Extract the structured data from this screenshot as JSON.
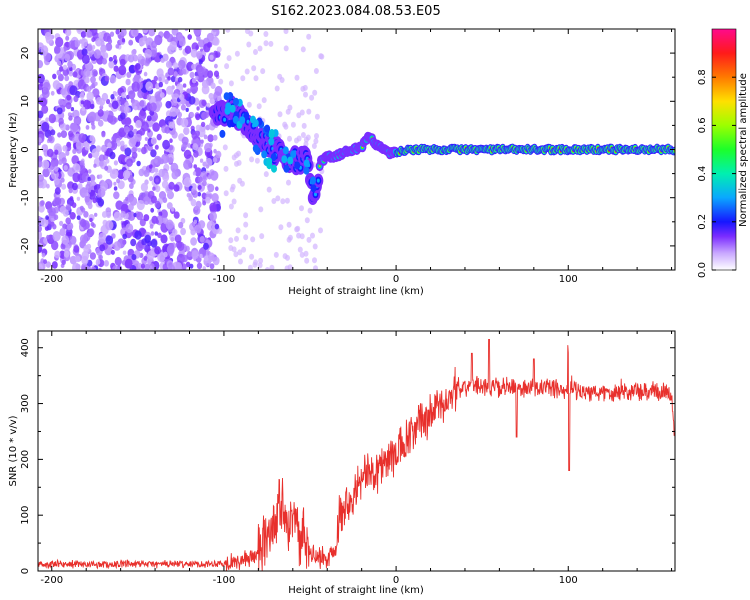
{
  "title": "S162.2023.084.08.53.E05",
  "chart_data": [
    {
      "type": "heatmap",
      "xlabel": "Height of straight line (km)",
      "ylabel": "Frequency (Hz)",
      "xlim": [
        -208,
        162
      ],
      "ylim": [
        -25,
        25
      ],
      "x_ticks": [
        -200,
        -100,
        0,
        100
      ],
      "y_ticks": [
        -20,
        -10,
        0,
        10,
        20
      ],
      "colorbar": {
        "label": "Normalized spectral amplitude",
        "range": [
          0.0,
          1.0
        ],
        "ticks": [
          0.0,
          0.2,
          0.4,
          0.6,
          0.8
        ],
        "tick_labels": [
          "0.0",
          "0.2",
          "0.4",
          "0.6",
          "0.8"
        ]
      },
      "ridge": {
        "x": [
          -105,
          -95,
          -88,
          -82,
          -75,
          -68,
          -60,
          -52,
          -48,
          -44,
          -40,
          -35,
          -30,
          -25,
          -20,
          -16,
          -12,
          -8,
          -4,
          0,
          10,
          40,
          80,
          120,
          162
        ],
        "freq": [
          6.5,
          8.0,
          6.0,
          3.0,
          1.0,
          -1.0,
          -2.0,
          -2.5,
          -10.5,
          -2.5,
          -1.5,
          -1.5,
          -0.5,
          0.0,
          0.5,
          3.0,
          1.0,
          0.5,
          -1.0,
          -0.5,
          0.0,
          0.0,
          0.0,
          0.0,
          0.0
        ]
      }
    },
    {
      "type": "line",
      "xlabel": "Height of straight line (km)",
      "ylabel": "SNR (10 * v/v)",
      "xlim": [
        -208,
        162
      ],
      "ylim": [
        0,
        430
      ],
      "x_ticks": [
        -200,
        -100,
        0,
        100
      ],
      "y_ticks": [
        0,
        100,
        200,
        300,
        400
      ],
      "series": [
        {
          "color": "#e8302c",
          "x": [
            -208,
            -150,
            -110,
            -100,
            -90,
            -80,
            -75,
            -70,
            -67,
            -64,
            -60,
            -55,
            -52,
            -50,
            -46,
            -40,
            -36,
            -33,
            -30,
            -25,
            -20,
            -15,
            -10,
            -5,
            0,
            5,
            10,
            15,
            20,
            25,
            30,
            35,
            40,
            45,
            50,
            55,
            60,
            65,
            70,
            75,
            80,
            85,
            90,
            95,
            98,
            100,
            102,
            105,
            110,
            120,
            130,
            140,
            150,
            155,
            158,
            160,
            162
          ],
          "y": [
            12,
            12,
            13,
            14,
            18,
            30,
            60,
            95,
            125,
            100,
            85,
            60,
            40,
            30,
            25,
            20,
            40,
            100,
            120,
            140,
            160,
            175,
            185,
            200,
            210,
            225,
            245,
            265,
            280,
            295,
            310,
            325,
            330,
            330,
            335,
            330,
            330,
            328,
            330,
            325,
            330,
            325,
            325,
            330,
            320,
            330,
            335,
            325,
            320,
            320,
            325,
            320,
            320,
            322,
            320,
            310,
            240
          ]
        }
      ]
    }
  ]
}
